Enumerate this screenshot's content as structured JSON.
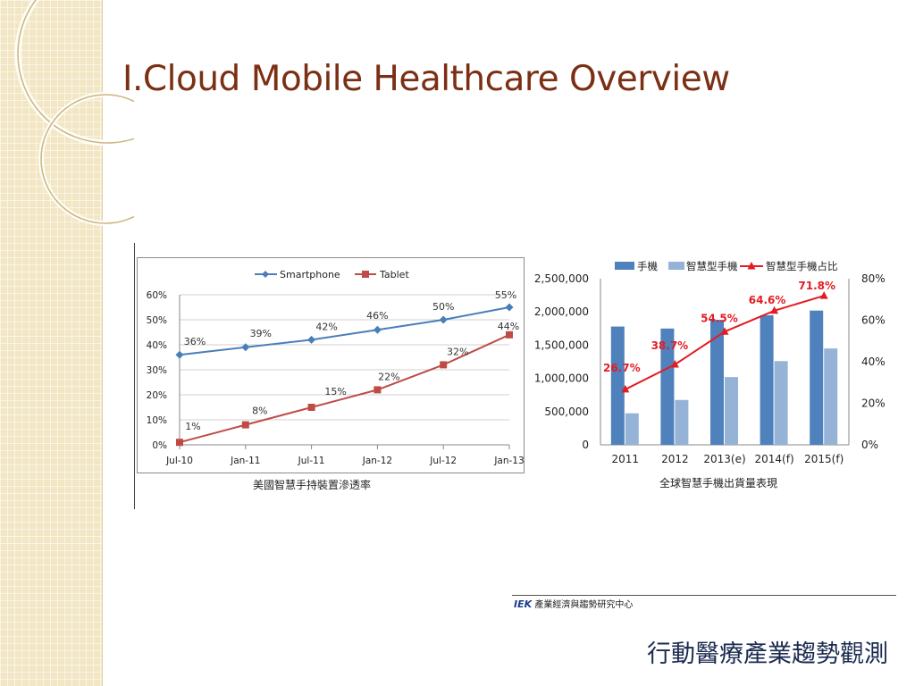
{
  "slide": {
    "title": "I.Cloud Mobile Healthcare Overview",
    "footer": "行動醫療產業趨勢觀測",
    "source_brand": "IEK",
    "source_text": "產業經濟與趨勢研究中心"
  },
  "colors": {
    "title": "#7b2f14",
    "smartphone": "#4a7ebb",
    "tablet": "#be4b48",
    "handset_bar": "#4f81bd",
    "smartphone_bar": "#95b3d7",
    "share_line": "#e31c23"
  },
  "chart_data": [
    {
      "type": "line",
      "caption": "美國智慧手持裝置滲透率",
      "x": [
        "Jul-10",
        "Jan-11",
        "Jul-11",
        "Jan-12",
        "Jul-12",
        "Jan-13"
      ],
      "ylim": [
        0,
        60
      ],
      "yticks": [
        "0%",
        "10%",
        "20%",
        "30%",
        "40%",
        "50%",
        "60%"
      ],
      "grid": true,
      "legend": "top",
      "series": [
        {
          "name": "Smartphone",
          "values": [
            36,
            39,
            42,
            46,
            50,
            55
          ],
          "labels": [
            "36%",
            "39%",
            "42%",
            "46%",
            "50%",
            "55%"
          ]
        },
        {
          "name": "Tablet",
          "values": [
            1,
            8,
            15,
            22,
            32,
            44
          ],
          "labels": [
            "1%",
            "8%",
            "15%",
            "22%",
            "32%",
            "44%"
          ]
        }
      ]
    },
    {
      "type": "bar",
      "caption": "全球智慧手機出貨量表現",
      "categories": [
        "2011",
        "2012",
        "2013(e)",
        "2014(f)",
        "2015(f)"
      ],
      "ylim": [
        0,
        2500000
      ],
      "yticks": [
        "0",
        "500,000",
        "1,000,000",
        "1,500,000",
        "2,000,000",
        "2,500,000"
      ],
      "y2lim": [
        0,
        80
      ],
      "y2ticks": [
        "0%",
        "20%",
        "40%",
        "60%",
        "80%"
      ],
      "grid": false,
      "legend": "top",
      "series": [
        {
          "name": "手機",
          "kind": "bar",
          "values": [
            1780000,
            1750000,
            1880000,
            1950000,
            2020000
          ]
        },
        {
          "name": "智慧型手機",
          "kind": "bar",
          "values": [
            475000,
            675000,
            1020000,
            1260000,
            1450000
          ]
        },
        {
          "name": "智慧型手機占比",
          "kind": "line",
          "axis": "right",
          "values": [
            26.7,
            38.7,
            54.5,
            64.6,
            71.8
          ],
          "labels": [
            "26.7%",
            "38.7%",
            "54.5%",
            "64.6%",
            "71.8%"
          ]
        }
      ]
    }
  ]
}
